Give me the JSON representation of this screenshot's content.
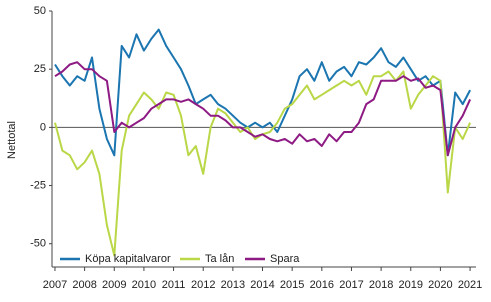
{
  "chart_data": {
    "type": "line",
    "y_label": "Nettotal",
    "x": [
      2007,
      2007.25,
      2007.5,
      2007.75,
      2008,
      2008.25,
      2008.5,
      2008.75,
      2009,
      2009.25,
      2009.5,
      2009.75,
      2010,
      2010.25,
      2010.5,
      2010.75,
      2011,
      2011.25,
      2011.5,
      2011.75,
      2012,
      2012.25,
      2012.5,
      2012.75,
      2013,
      2013.25,
      2013.5,
      2013.75,
      2014,
      2014.25,
      2014.5,
      2014.75,
      2015,
      2015.25,
      2015.5,
      2015.75,
      2016,
      2016.25,
      2016.5,
      2016.75,
      2017,
      2017.25,
      2017.5,
      2017.75,
      2018,
      2018.25,
      2018.5,
      2018.75,
      2019,
      2019.25,
      2019.5,
      2019.75,
      2020,
      2020.25,
      2020.5,
      2020.75,
      2021
    ],
    "series": [
      {
        "name": "Köpa kapitalvaror",
        "color": "#1a75b0",
        "values": [
          27,
          22,
          18,
          22,
          20,
          30,
          8,
          -5,
          -12,
          35,
          30,
          40,
          33,
          38,
          42,
          35,
          30,
          25,
          18,
          10,
          12,
          14,
          10,
          8,
          5,
          2,
          0,
          2,
          0,
          2,
          -2,
          5,
          12,
          22,
          25,
          20,
          28,
          20,
          24,
          26,
          22,
          28,
          27,
          30,
          34,
          28,
          26,
          30,
          25,
          20,
          22,
          18,
          20,
          -12,
          15,
          10,
          16
        ]
      },
      {
        "name": "Ta lån",
        "color": "#b9d746",
        "values": [
          2,
          -10,
          -12,
          -18,
          -15,
          -10,
          -20,
          -42,
          -55,
          -10,
          5,
          10,
          15,
          12,
          8,
          15,
          14,
          5,
          -12,
          -8,
          -20,
          0,
          8,
          6,
          2,
          -2,
          0,
          -5,
          -3,
          -2,
          2,
          8,
          10,
          14,
          18,
          12,
          14,
          16,
          18,
          20,
          18,
          20,
          14,
          22,
          22,
          24,
          20,
          24,
          8,
          14,
          18,
          22,
          20,
          -28,
          0,
          -5,
          2
        ]
      },
      {
        "name": "Spara",
        "color": "#8e1a84",
        "values": [
          22,
          24,
          27,
          28,
          25,
          25,
          22,
          20,
          -2,
          2,
          0,
          2,
          4,
          8,
          10,
          12,
          12,
          11,
          12,
          10,
          8,
          5,
          5,
          3,
          0,
          0,
          -2,
          -4,
          -3,
          -5,
          -6,
          -5,
          -7,
          -3,
          -6,
          -5,
          -8,
          -3,
          -6,
          -2,
          -2,
          2,
          10,
          12,
          20,
          20,
          20,
          22,
          20,
          21,
          17,
          18,
          16,
          -12,
          0,
          5,
          12
        ]
      }
    ],
    "xlim": [
      2006.9,
      2021.2
    ],
    "xticks": [
      2007,
      2008,
      2009,
      2010,
      2011,
      2012,
      2013,
      2014,
      2015,
      2016,
      2017,
      2018,
      2019,
      2020,
      2021
    ],
    "ylim": [
      -60,
      50
    ],
    "yticks": [
      50,
      25,
      0,
      -25,
      -50
    ],
    "legend": "bottom-left"
  }
}
